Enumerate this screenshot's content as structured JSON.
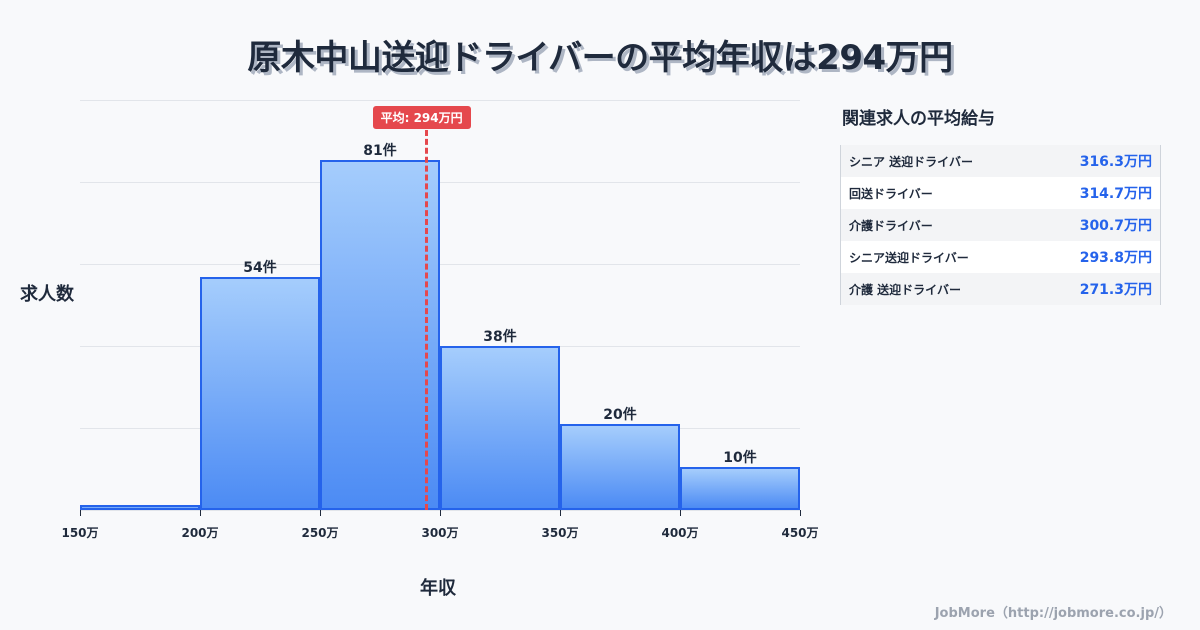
{
  "title": "原木中山送迎ドライバーの平均年収は294万円",
  "chart_data": {
    "type": "bar",
    "title": "原木中山送迎ドライバーの平均年収は294万円",
    "xlabel": "年収",
    "ylabel": "求人数",
    "categories": [
      "150-200万",
      "200-250万",
      "250-300万",
      "300-350万",
      "350-400万",
      "400-450万"
    ],
    "values": [
      1,
      54,
      81,
      38,
      20,
      10
    ],
    "bar_labels": [
      "",
      "54件",
      "81件",
      "38件",
      "20件",
      "10件"
    ],
    "x_ticks": [
      "150万",
      "200万",
      "250万",
      "300万",
      "350万",
      "400万",
      "450万"
    ],
    "ylim": [
      0,
      95
    ],
    "grid": true,
    "average": {
      "value": 294,
      "label": "平均: 294万円"
    }
  },
  "side_panel": {
    "title": "関連求人の平均給与",
    "items": [
      {
        "name": "シニア 送迎ドライバー",
        "value": "316.3万円"
      },
      {
        "name": "回送ドライバー",
        "value": "314.7万円"
      },
      {
        "name": "介護ドライバー",
        "value": "300.7万円"
      },
      {
        "name": "シニア送迎ドライバー",
        "value": "293.8万円"
      },
      {
        "name": "介護 送迎ドライバー",
        "value": "271.3万円"
      }
    ]
  },
  "footer": "JobMore（http://jobmore.co.jp/）",
  "colors": {
    "bar_border": "#2563eb",
    "average_line": "#e5484d",
    "value_text": "#2563eb"
  }
}
